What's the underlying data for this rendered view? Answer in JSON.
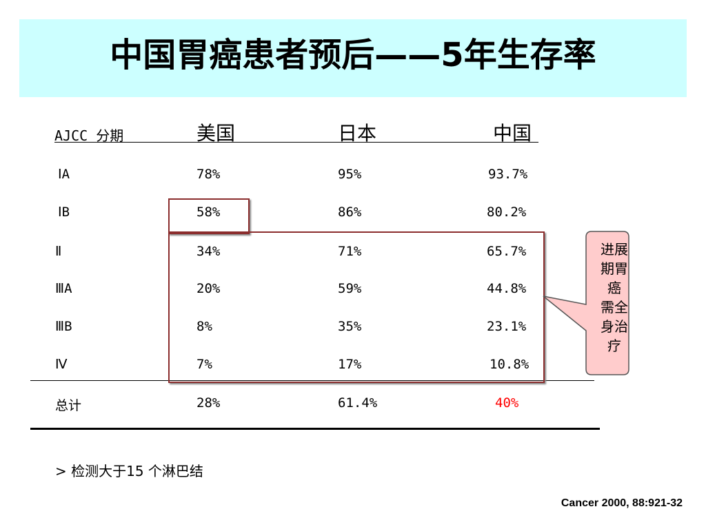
{
  "title": "中国胃癌患者预后——5年生存率",
  "table": {
    "headers": [
      "AJCC 分期",
      "美国",
      "日本",
      "中国"
    ],
    "rows": [
      [
        "ⅠA",
        "78%",
        "95%",
        "93.7%"
      ],
      [
        "ⅠB",
        "58%",
        "86%",
        "80.2%"
      ],
      [
        "Ⅱ",
        "34%",
        "71%",
        "65.7%"
      ],
      [
        "ⅢA",
        "20%",
        "59%",
        "44.8%"
      ],
      [
        "ⅢB",
        "8%",
        "35%",
        "23.1%"
      ],
      [
        "Ⅳ",
        "7%",
        "17%",
        "10.8%"
      ]
    ],
    "total": [
      "总计",
      "28%",
      "61.4%",
      "40%"
    ]
  },
  "callout": [
    "进展",
    "期胃",
    "癌",
    "需全",
    "身治",
    "疗"
  ],
  "note": "> 检测大于15 个淋巴结",
  "citation": "Cancer 2000, 88:921-32",
  "colors": {
    "title_band": "#ccffff",
    "highlight_box": "#8b2d2d",
    "callout_fill": "#ffcccc",
    "total_china": "#ff0000"
  }
}
